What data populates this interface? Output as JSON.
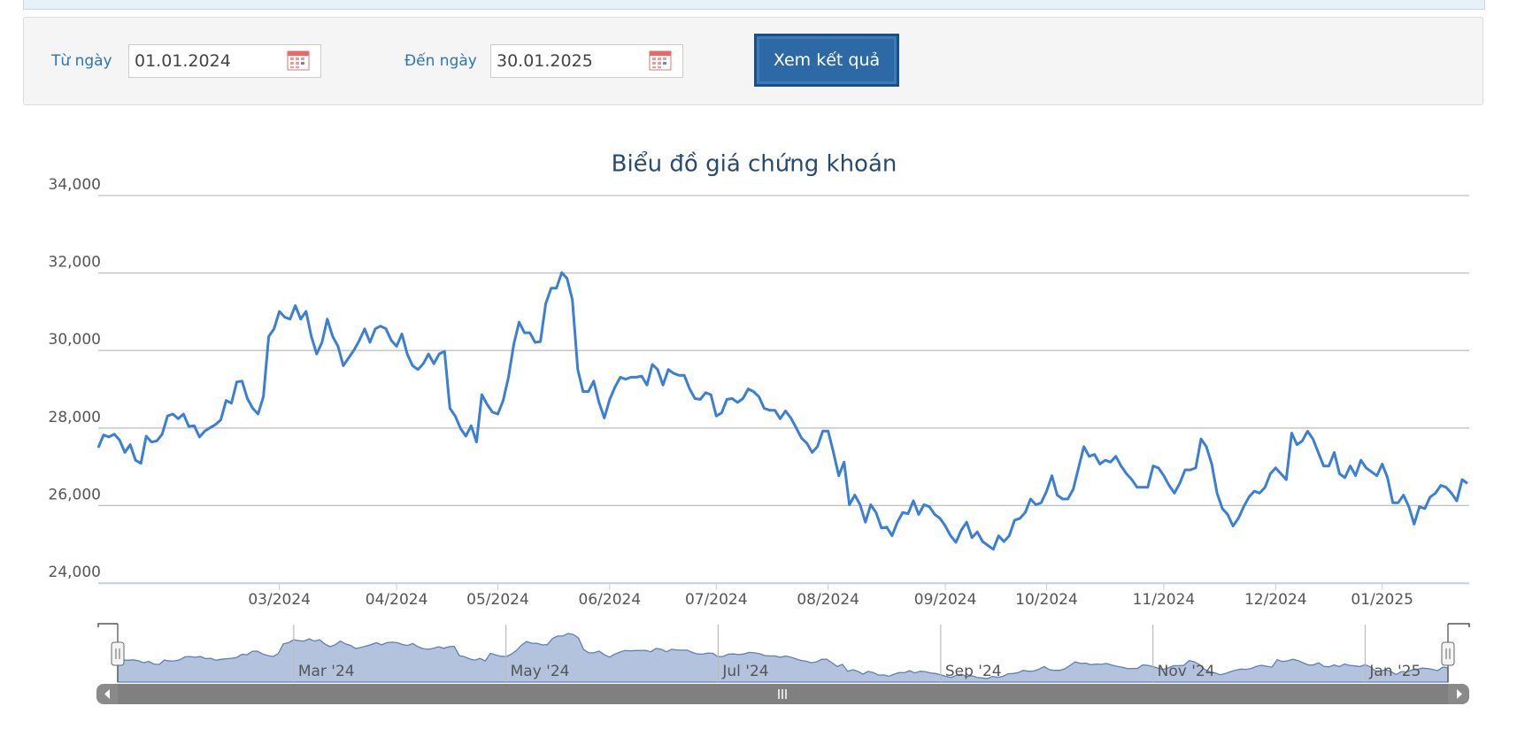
{
  "form": {
    "from_label": "Từ ngày",
    "from_value": "01.01.2024",
    "to_label": "Đến ngày",
    "to_value": "30.01.2025",
    "button": "Xem kết quả"
  },
  "chart_data": {
    "type": "line",
    "title": "Biểu đồ giá chứng khoán",
    "color": "#3a7fd5",
    "grid": true,
    "ylim": [
      24000,
      34000
    ],
    "yticks": [
      {
        "value": 24000,
        "label": "24,000"
      },
      {
        "value": 26000,
        "label": "26,000"
      },
      {
        "value": 28000,
        "label": "28,000"
      },
      {
        "value": 30000,
        "label": "30,000"
      },
      {
        "value": 32000,
        "label": "32,000"
      },
      {
        "value": 34000,
        "label": "34,000"
      }
    ],
    "categories": [
      null,
      null,
      null,
      null,
      null,
      null,
      null,
      null,
      null,
      null,
      null,
      null,
      null,
      null,
      null,
      null,
      null,
      null,
      null,
      null,
      null,
      null,
      null,
      null,
      null,
      null,
      null,
      null,
      null,
      null,
      null,
      null,
      null,
      null,
      "03/2024",
      null,
      null,
      null,
      null,
      null,
      null,
      null,
      null,
      null,
      null,
      null,
      null,
      null,
      null,
      null,
      null,
      null,
      null,
      null,
      null,
      null,
      "04/2024",
      null,
      null,
      null,
      null,
      null,
      null,
      null,
      null,
      null,
      null,
      null,
      null,
      null,
      null,
      null,
      null,
      null,
      null,
      "05/2024",
      null,
      null,
      null,
      null,
      null,
      null,
      null,
      null,
      null,
      null,
      null,
      null,
      null,
      null,
      null,
      null,
      null,
      null,
      null,
      null,
      "06/2024",
      null,
      null,
      null,
      null,
      null,
      null,
      null,
      null,
      null,
      null,
      null,
      null,
      null,
      null,
      null,
      null,
      null,
      null,
      null,
      "07/2024",
      null,
      null,
      null,
      null,
      null,
      null,
      null,
      null,
      null,
      null,
      null,
      null,
      null,
      null,
      null,
      null,
      null,
      null,
      null,
      null,
      "08/2024",
      null,
      null,
      null,
      null,
      null,
      null,
      null,
      null,
      null,
      null,
      null,
      null,
      null,
      null,
      null,
      null,
      null,
      null,
      null,
      null,
      null,
      "09/2024",
      null,
      null,
      null,
      null,
      null,
      null,
      null,
      null,
      null,
      null,
      null,
      null,
      null,
      null,
      null,
      null,
      null,
      null,
      "10/2024",
      null,
      null,
      null,
      null,
      null,
      null,
      null,
      null,
      null,
      null,
      null,
      null,
      null,
      null,
      null,
      null,
      null,
      null,
      null,
      null,
      null,
      "11/2024",
      null,
      null,
      null,
      null,
      null,
      null,
      null,
      null,
      null,
      null,
      null,
      null,
      null,
      null,
      null,
      null,
      null,
      null,
      null,
      null,
      "12/2024",
      null,
      null,
      null,
      null,
      null,
      null,
      null,
      null,
      null,
      null,
      null,
      null,
      null,
      null,
      null,
      null,
      null,
      null,
      null,
      "01/2025",
      null,
      null,
      null,
      null,
      null,
      null,
      null,
      null,
      null,
      null,
      null,
      null,
      null,
      null,
      null,
      null
    ],
    "values": [
      27490,
      27820,
      27770,
      27840,
      27690,
      27370,
      27570,
      27170,
      27090,
      27790,
      27640,
      27670,
      27840,
      28310,
      28360,
      28240,
      28360,
      28040,
      28060,
      27770,
      27920,
      28010,
      28090,
      28210,
      28710,
      28640,
      29190,
      29210,
      28760,
      28510,
      28360,
      28810,
      30360,
      30560,
      31010,
      30860,
      30810,
      31160,
      30810,
      31010,
      30360,
      29910,
      30210,
      30810,
      30360,
      30110,
      29610,
      29810,
      30010,
      30260,
      30560,
      30210,
      30560,
      30630,
      30560,
      30260,
      30110,
      30430,
      29910,
      29610,
      29510,
      29660,
      29910,
      29660,
      29910,
      29980,
      28510,
      28310,
      27990,
      27790,
      28060,
      27640,
      28860,
      28610,
      28410,
      28360,
      28710,
      29310,
      30160,
      30730,
      30460,
      30460,
      30210,
      30230,
      31210,
      31610,
      31610,
      32010,
      31860,
      31310,
      29510,
      28940,
      28940,
      29210,
      28660,
      28260,
      28740,
      29060,
      29310,
      29260,
      29310,
      29310,
      29340,
      29110,
      29640,
      29510,
      29110,
      29510,
      29410,
      29360,
      29360,
      29010,
      28760,
      28740,
      28910,
      28860,
      28310,
      28390,
      28740,
      28760,
      28660,
      28760,
      29010,
      28940,
      28810,
      28510,
      28460,
      28460,
      28240,
      28440,
      28260,
      28010,
      27740,
      27610,
      27370,
      27520,
      27920,
      27920,
      27370,
      26770,
      27120,
      26020,
      26270,
      26020,
      25570,
      26020,
      25820,
      25420,
      25440,
      25220,
      25570,
      25820,
      25790,
      26120,
      25770,
      26020,
      25970,
      25770,
      25670,
      25470,
      25220,
      25050,
      25370,
      25570,
      25170,
      25320,
      25070,
      24970,
      24870,
      25220,
      25070,
      25220,
      25620,
      25670,
      25820,
      26170,
      26020,
      26070,
      26370,
      26770,
      26270,
      26170,
      26170,
      26420,
      26970,
      27520,
      27270,
      27320,
      27070,
      27170,
      27120,
      27270,
      27020,
      26820,
      26670,
      26470,
      26470,
      26470,
      27020,
      26970,
      26770,
      26520,
      26320,
      26570,
      26920,
      26920,
      26970,
      27720,
      27520,
      27070,
      26320,
      25920,
      25770,
      25470,
      25670,
      25970,
      26220,
      26370,
      26320,
      26470,
      26820,
      26970,
      26820,
      26670,
      27870,
      27570,
      27670,
      27920,
      27720,
      27370,
      27020,
      27020,
      27370,
      26820,
      26720,
      27020,
      26770,
      27170,
      26970,
      26870,
      26770,
      27070,
      26720,
      26070,
      26070,
      26270,
      25970,
      25520,
      25970,
      25920,
      26220,
      26320,
      26520,
      26470,
      26320,
      26120,
      26670,
      26570
    ]
  },
  "navigator": {
    "labels": [
      "Mar '24",
      "May '24",
      "Jul '24",
      "Sep '24",
      "Nov '24",
      "Jan '25"
    ]
  }
}
